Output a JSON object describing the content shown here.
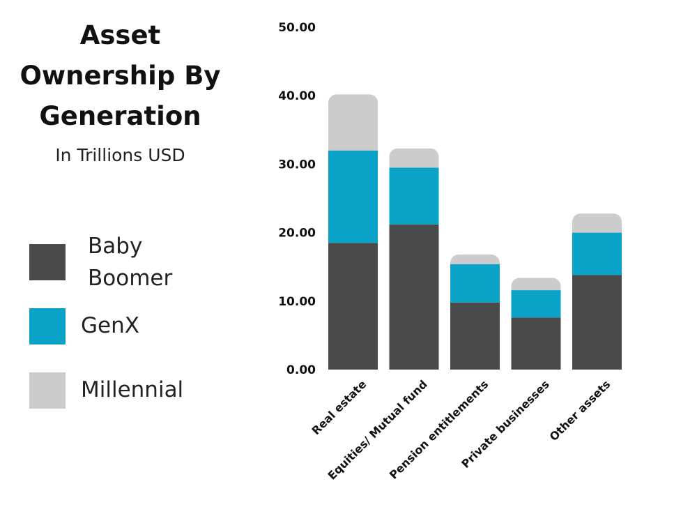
{
  "chart_data": {
    "type": "bar",
    "stacked": true,
    "title": "Asset Ownership By Generation",
    "subtitle": "In Trillions USD",
    "categories": [
      "Real estate",
      "Equities/ Mutual fund",
      "Pension entitlements",
      "Private businesses",
      "Other assets"
    ],
    "series": [
      {
        "name": "Baby Boomer",
        "color": "#4a4a4a",
        "values": [
          18.5,
          21.2,
          9.8,
          7.6,
          13.8
        ]
      },
      {
        "name": "GenX",
        "color": "#0aa3c7",
        "values": [
          13.5,
          8.3,
          5.6,
          4.0,
          6.2
        ]
      },
      {
        "name": "Millennial",
        "color": "#cccccc",
        "values": [
          8.2,
          2.8,
          1.4,
          1.8,
          2.8
        ]
      }
    ],
    "ylim": [
      0,
      50
    ],
    "yticks": [
      "0.00",
      "10.00",
      "20.00",
      "30.00",
      "40.00",
      "50.00"
    ],
    "xlabel": "",
    "ylabel": "",
    "legend_position": "left"
  }
}
